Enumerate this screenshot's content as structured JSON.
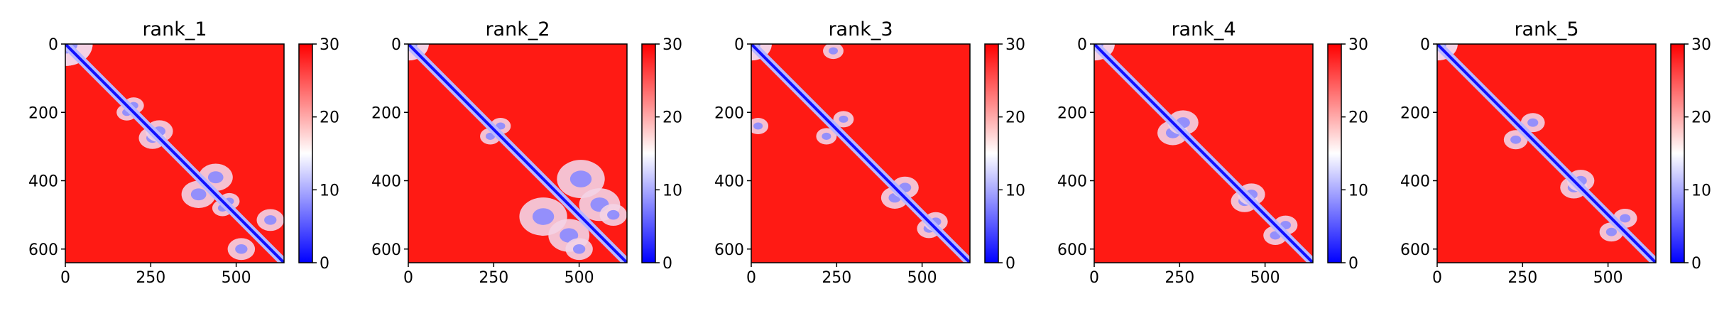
{
  "chart_data": [
    {
      "type": "heatmap",
      "title": "rank_1",
      "x_ticks": [
        "0",
        "250",
        "500"
      ],
      "y_ticks": [
        "0",
        "200",
        "400",
        "600"
      ],
      "colorbar": {
        "ticks": [
          "0",
          "10",
          "20",
          "30"
        ],
        "range": [
          0,
          30
        ],
        "colors": [
          "#0000ff",
          "#ffffff",
          "#ff0000"
        ]
      },
      "size": [
        640,
        640
      ],
      "features": [
        [
          0,
          0,
          80,
          10
        ],
        [
          180,
          200,
          30,
          8
        ],
        [
          255,
          275,
          40,
          6
        ],
        [
          390,
          440,
          50,
          9
        ],
        [
          460,
          480,
          30,
          7
        ],
        [
          515,
          600,
          40,
          8
        ]
      ]
    },
    {
      "type": "heatmap",
      "title": "rank_2",
      "x_ticks": [
        "0",
        "250",
        "500"
      ],
      "y_ticks": [
        "0",
        "200",
        "400",
        "600"
      ],
      "colorbar": {
        "ticks": [
          "0",
          "10",
          "20",
          "30"
        ],
        "range": [
          0,
          30
        ],
        "colors": [
          "#0000ff",
          "#ffffff",
          "#ff0000"
        ]
      },
      "size": [
        640,
        640
      ],
      "features": [
        [
          0,
          0,
          60,
          14
        ],
        [
          240,
          270,
          30,
          14
        ],
        [
          395,
          505,
          70,
          12
        ],
        [
          470,
          560,
          60,
          12
        ],
        [
          500,
          600,
          40,
          12
        ]
      ]
    },
    {
      "type": "heatmap",
      "title": "rank_3",
      "x_ticks": [
        "0",
        "250",
        "500"
      ],
      "y_ticks": [
        "0",
        "200",
        "400",
        "600"
      ],
      "colorbar": {
        "ticks": [
          "0",
          "10",
          "20",
          "30"
        ],
        "range": [
          0,
          30
        ],
        "colors": [
          "#0000ff",
          "#ffffff",
          "#ff0000"
        ]
      },
      "size": [
        640,
        640
      ],
      "features": [
        [
          0,
          0,
          60,
          10
        ],
        [
          20,
          240,
          30,
          12
        ],
        [
          220,
          270,
          30,
          8
        ],
        [
          420,
          450,
          40,
          9
        ],
        [
          520,
          540,
          35,
          8
        ]
      ]
    },
    {
      "type": "heatmap",
      "title": "rank_4",
      "x_ticks": [
        "0",
        "250",
        "500"
      ],
      "y_ticks": [
        "0",
        "200",
        "400",
        "600"
      ],
      "colorbar": {
        "ticks": [
          "0",
          "10",
          "20",
          "30"
        ],
        "range": [
          0,
          30
        ],
        "colors": [
          "#0000ff",
          "#ffffff",
          "#ff0000"
        ]
      },
      "size": [
        640,
        640
      ],
      "features": [
        [
          0,
          0,
          60,
          10
        ],
        [
          230,
          260,
          45,
          6
        ],
        [
          440,
          460,
          40,
          9
        ],
        [
          530,
          560,
          35,
          8
        ]
      ]
    },
    {
      "type": "heatmap",
      "title": "rank_5",
      "x_ticks": [
        "0",
        "250",
        "500"
      ],
      "y_ticks": [
        "0",
        "200",
        "400",
        "600"
      ],
      "colorbar": {
        "ticks": [
          "0",
          "10",
          "20",
          "30"
        ],
        "range": [
          0,
          30
        ],
        "colors": [
          "#0000ff",
          "#ffffff",
          "#ff0000"
        ]
      },
      "size": [
        640,
        640
      ],
      "features": [
        [
          0,
          0,
          60,
          10
        ],
        [
          230,
          280,
          35,
          9
        ],
        [
          400,
          420,
          40,
          11
        ],
        [
          510,
          550,
          35,
          8
        ]
      ]
    }
  ]
}
